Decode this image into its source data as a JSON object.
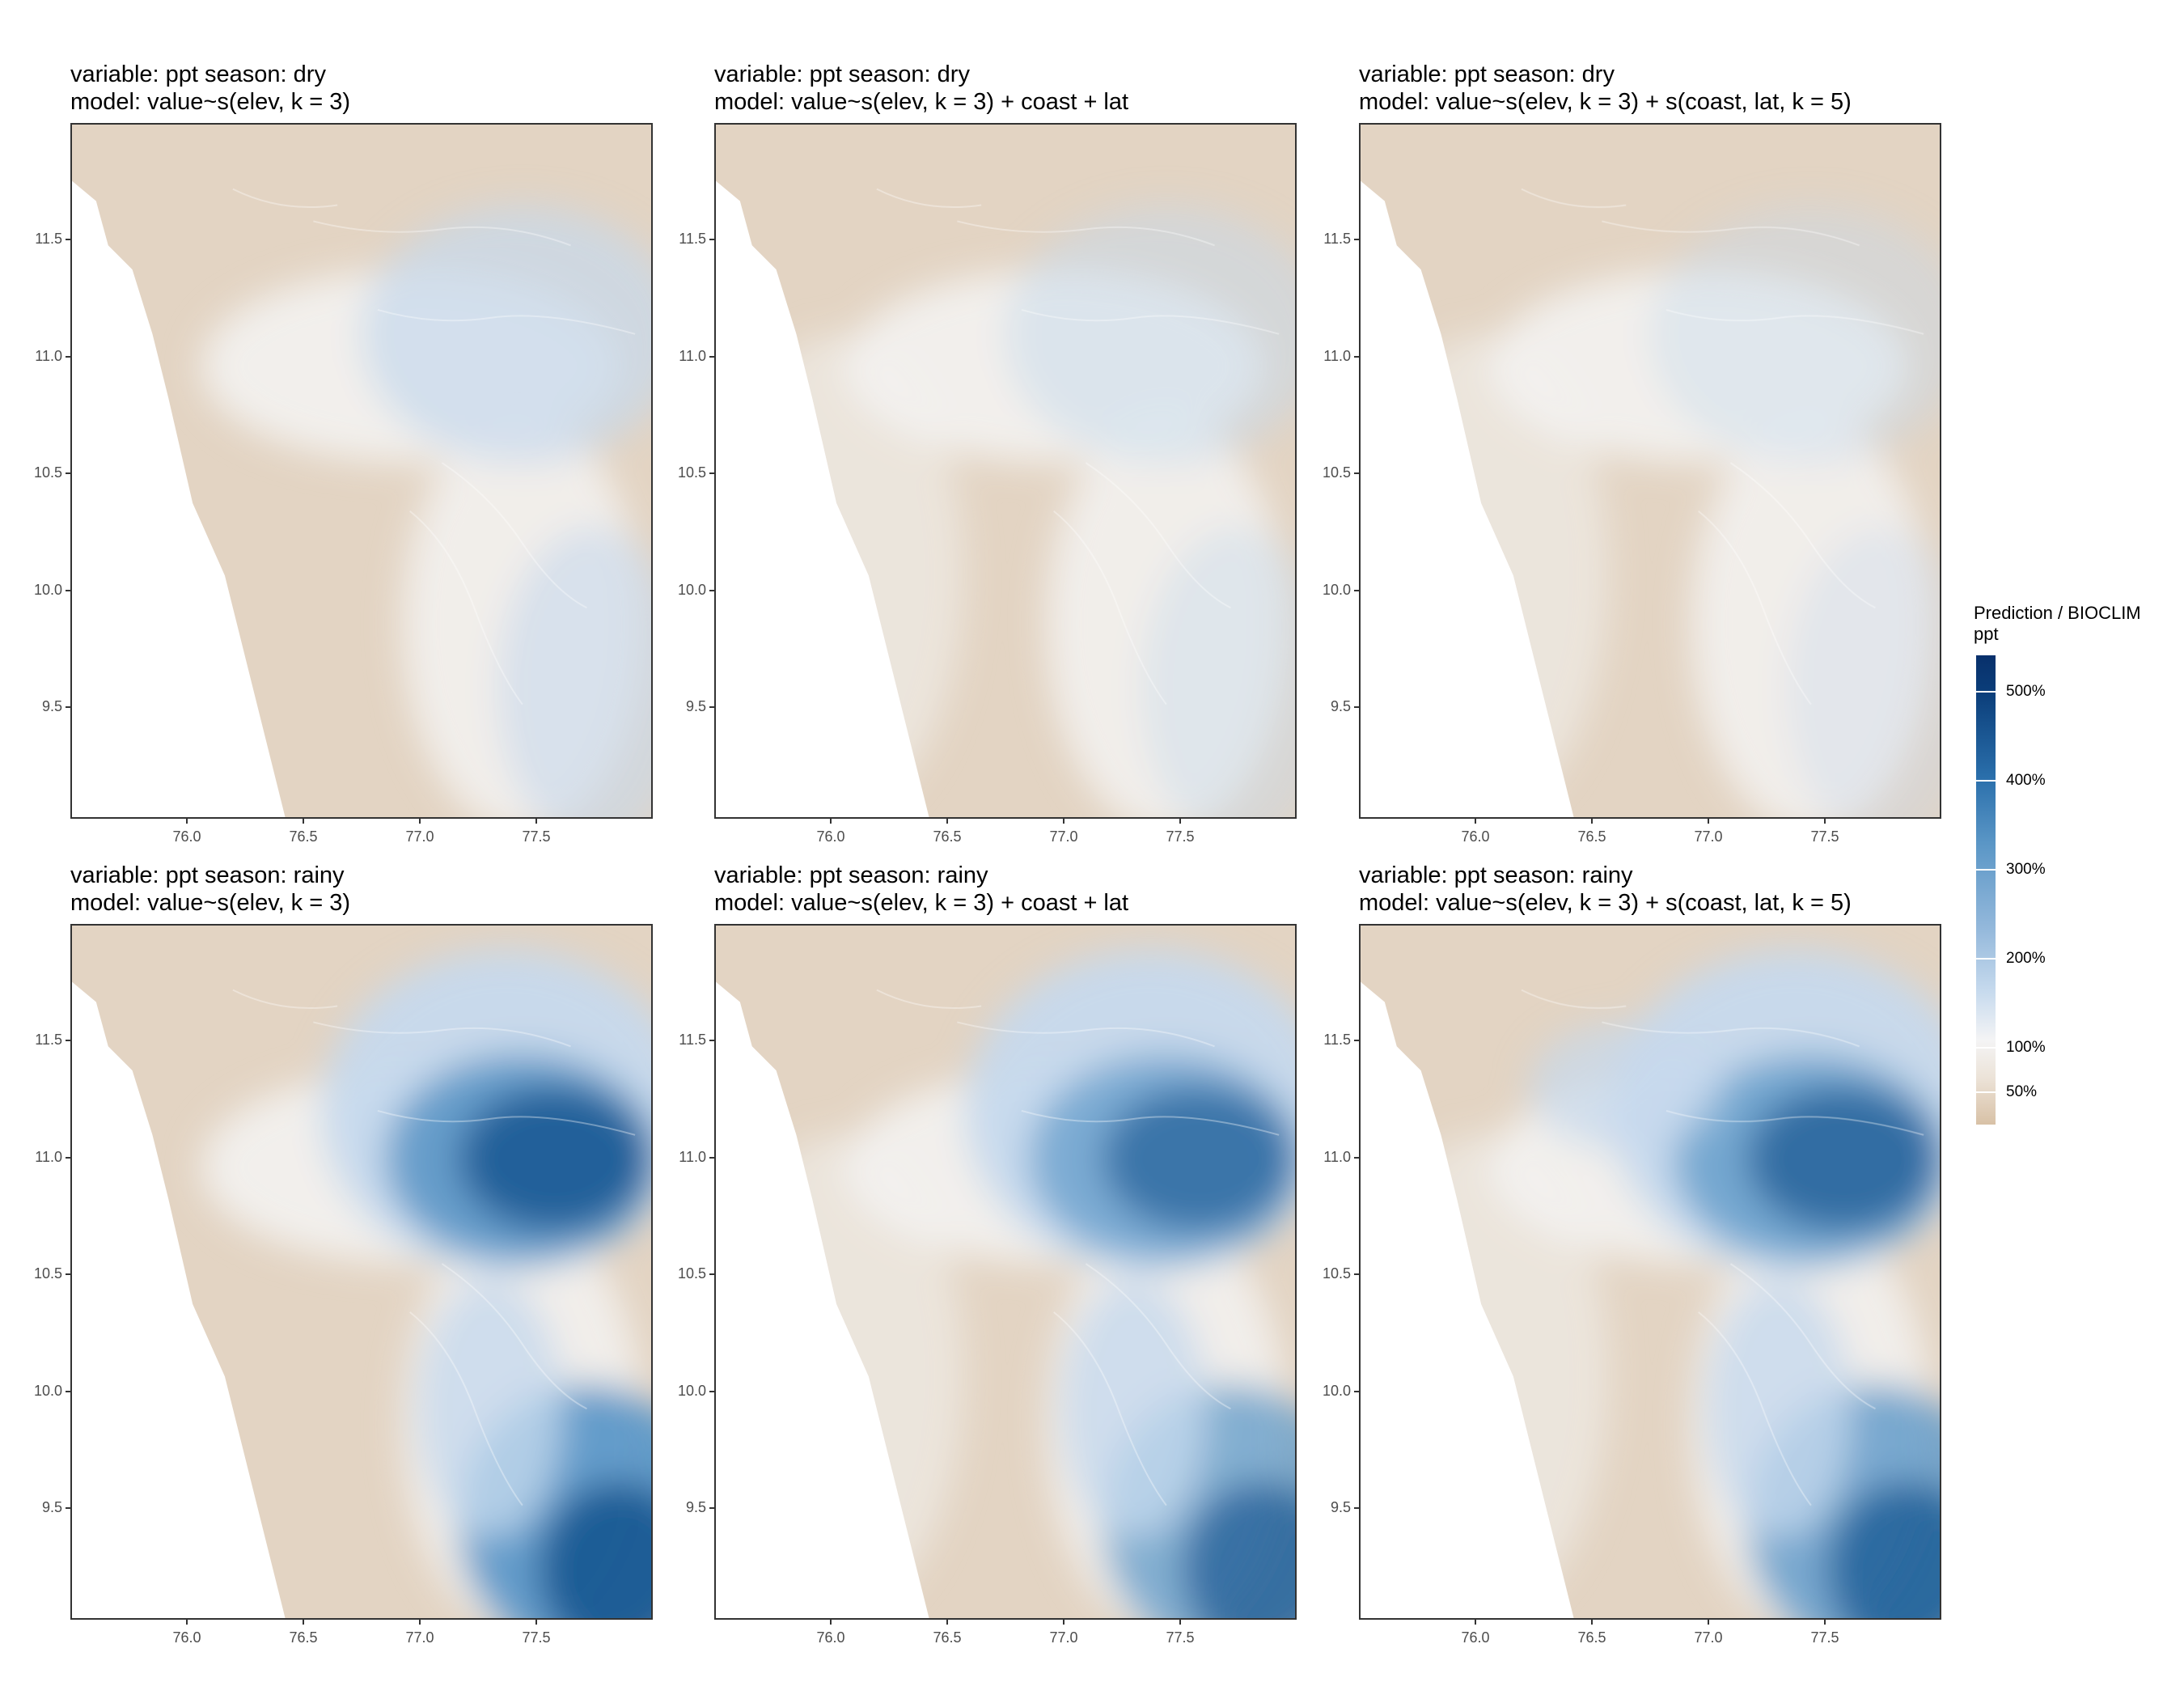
{
  "figure": {
    "panels": [
      {
        "variable_line": "variable: ppt season: dry",
        "model_line": "model: value~s(elev, k = 3)",
        "season": "dry",
        "model": "elev",
        "intensity": 0.35
      },
      {
        "variable_line": "variable: ppt season: dry",
        "model_line": "model: value~s(elev, k = 3) + coast + lat",
        "season": "dry",
        "model": "linear",
        "intensity": 0.25
      },
      {
        "variable_line": "variable: ppt season: dry",
        "model_line": "model: value~s(elev, k = 3) + s(coast, lat, k = 5)",
        "season": "dry",
        "model": "smooth",
        "intensity": 0.2
      },
      {
        "variable_line": "variable: ppt season: rainy",
        "model_line": "model: value~s(elev, k = 3)",
        "season": "rainy",
        "model": "elev",
        "intensity": 1.0
      },
      {
        "variable_line": "variable: ppt season: rainy",
        "model_line": "model: value~s(elev, k = 3) + coast + lat",
        "season": "rainy",
        "model": "linear",
        "intensity": 0.78
      },
      {
        "variable_line": "variable: ppt season: rainy",
        "model_line": "model: value~s(elev, k = 3) + s(coast, lat, k = 5)",
        "season": "rainy",
        "model": "smooth",
        "intensity": 0.85
      }
    ],
    "y_ticks": [
      "11.5",
      "11.0",
      "10.5",
      "10.0",
      "9.5"
    ],
    "x_ticks": [
      "76.0",
      "76.5",
      "77.0",
      "77.5"
    ],
    "legend": {
      "title_line1": "Prediction / BIOCLIM",
      "title_line2": "ppt",
      "labels": [
        "500%",
        "400%",
        "300%",
        "200%",
        "100%",
        "50%"
      ]
    },
    "colors": {
      "dry_tan": "#e3d4c3",
      "neutral": "#f3f2f1",
      "light_blue": "#c6d9ed",
      "mid_blue": "#5b97c7",
      "dark_blue": "#0b4d8a",
      "panel_border": "#333333"
    }
  }
}
